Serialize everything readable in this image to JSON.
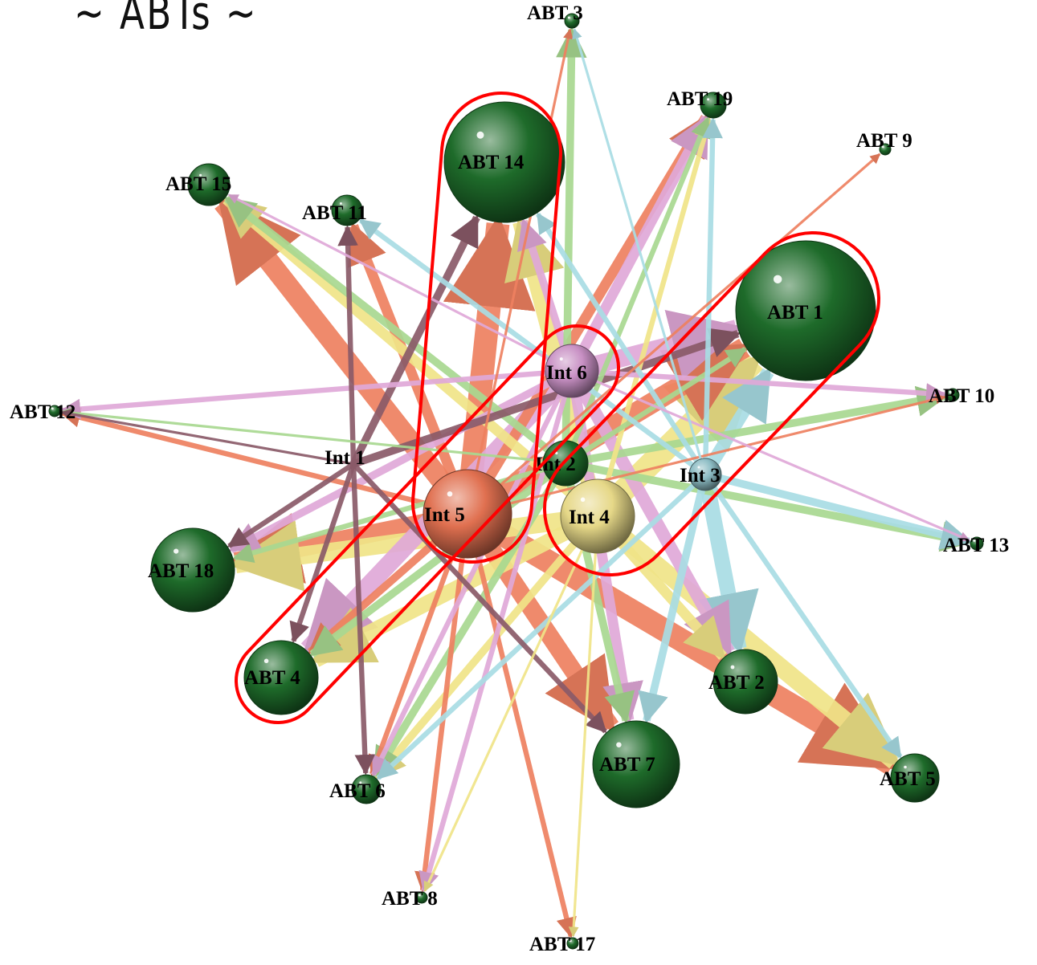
{
  "title": "~ ABTs ~",
  "colors": {
    "abt_node": "#1e6b2a",
    "highlight": "#ff0000",
    "int1": "#7e5560",
    "int2": "#1e6b2a",
    "int3": "#8cbcc4",
    "int4": "#e6d888",
    "int5": "#e07050",
    "int6": "#c890c4",
    "edge_orange": "#ee8060",
    "edge_green": "#a8d890",
    "edge_yellow": "#f0e488",
    "edge_pink": "#e0a8d8",
    "edge_cyan": "#a8dce4",
    "edge_brown": "#8a5a68"
  },
  "nodes": [
    {
      "id": "abt3",
      "label": "ABT 3",
      "kind": "abt"
    },
    {
      "id": "abt19",
      "label": "ABT 19",
      "kind": "abt"
    },
    {
      "id": "abt9",
      "label": "ABT 9",
      "kind": "abt"
    },
    {
      "id": "abt14",
      "label": "ABT 14",
      "kind": "abt"
    },
    {
      "id": "abt15",
      "label": "ABT 15",
      "kind": "abt"
    },
    {
      "id": "abt11",
      "label": "ABT 11",
      "kind": "abt"
    },
    {
      "id": "abt1",
      "label": "ABT 1",
      "kind": "abt"
    },
    {
      "id": "abt10",
      "label": "ABT 10",
      "kind": "abt"
    },
    {
      "id": "abt12",
      "label": "ABT 12",
      "kind": "abt"
    },
    {
      "id": "abt13",
      "label": "ABT 13",
      "kind": "abt"
    },
    {
      "id": "abt18",
      "label": "ABT 18",
      "kind": "abt"
    },
    {
      "id": "abt4",
      "label": "ABT 4",
      "kind": "abt"
    },
    {
      "id": "abt2",
      "label": "ABT 2",
      "kind": "abt"
    },
    {
      "id": "abt7",
      "label": "ABT 7",
      "kind": "abt"
    },
    {
      "id": "abt5",
      "label": "ABT 5",
      "kind": "abt"
    },
    {
      "id": "abt6",
      "label": "ABT 6",
      "kind": "abt"
    },
    {
      "id": "abt8",
      "label": "ABT 8",
      "kind": "abt"
    },
    {
      "id": "abt17",
      "label": "ABT 17",
      "kind": "abt"
    },
    {
      "id": "int1",
      "label": "Int 1",
      "kind": "int1"
    },
    {
      "id": "int2",
      "label": "Int 2",
      "kind": "int2"
    },
    {
      "id": "int3",
      "label": "Int 3",
      "kind": "int3"
    },
    {
      "id": "int4",
      "label": "Int 4",
      "kind": "int4"
    },
    {
      "id": "int5",
      "label": "Int 5",
      "kind": "int5"
    },
    {
      "id": "int6",
      "label": "Int 6",
      "kind": "int6"
    }
  ],
  "edges": [
    {
      "from": "int5",
      "to": "abt14",
      "color": "edge_orange",
      "weight": 9
    },
    {
      "from": "int5",
      "to": "abt15",
      "color": "edge_orange",
      "weight": 8
    },
    {
      "from": "int5",
      "to": "abt5",
      "color": "edge_orange",
      "weight": 9
    },
    {
      "from": "int5",
      "to": "abt1",
      "color": "edge_orange",
      "weight": 8
    },
    {
      "from": "int5",
      "to": "abt18",
      "color": "edge_orange",
      "weight": 7
    },
    {
      "from": "int5",
      "to": "abt7",
      "color": "edge_orange",
      "weight": 7
    },
    {
      "from": "int5",
      "to": "abt11",
      "color": "edge_orange",
      "weight": 4
    },
    {
      "from": "int5",
      "to": "abt19",
      "color": "edge_orange",
      "weight": 4
    },
    {
      "from": "int5",
      "to": "abt12",
      "color": "edge_orange",
      "weight": 2
    },
    {
      "from": "int5",
      "to": "abt8",
      "color": "edge_orange",
      "weight": 2
    },
    {
      "from": "int5",
      "to": "abt17",
      "color": "edge_orange",
      "weight": 2
    },
    {
      "from": "int5",
      "to": "abt6",
      "color": "edge_orange",
      "weight": 2
    },
    {
      "from": "int5",
      "to": "abt3",
      "color": "edge_orange",
      "weight": 1
    },
    {
      "from": "int5",
      "to": "abt4",
      "color": "edge_orange",
      "weight": 3
    },
    {
      "from": "int5",
      "to": "abt9",
      "color": "edge_orange",
      "weight": 1
    },
    {
      "from": "int5",
      "to": "abt10",
      "color": "edge_orange",
      "weight": 1
    },
    {
      "from": "int4",
      "to": "abt1",
      "color": "edge_yellow",
      "weight": 9
    },
    {
      "from": "int4",
      "to": "abt14",
      "color": "edge_yellow",
      "weight": 6
    },
    {
      "from": "int4",
      "to": "abt18",
      "color": "edge_yellow",
      "weight": 7
    },
    {
      "from": "int4",
      "to": "abt4",
      "color": "edge_yellow",
      "weight": 6
    },
    {
      "from": "int4",
      "to": "abt5",
      "color": "edge_yellow",
      "weight": 7
    },
    {
      "from": "int4",
      "to": "abt15",
      "color": "edge_yellow",
      "weight": 4
    },
    {
      "from": "int4",
      "to": "abt6",
      "color": "edge_yellow",
      "weight": 3
    },
    {
      "from": "int4",
      "to": "abt2",
      "color": "edge_yellow",
      "weight": 4
    },
    {
      "from": "int4",
      "to": "abt19",
      "color": "edge_yellow",
      "weight": 2
    },
    {
      "from": "int4",
      "to": "abt17",
      "color": "edge_yellow",
      "weight": 1
    },
    {
      "from": "int4",
      "to": "abt8",
      "color": "edge_yellow",
      "weight": 1
    },
    {
      "from": "int6",
      "to": "abt1",
      "color": "edge_pink",
      "weight": 7
    },
    {
      "from": "int6",
      "to": "abt4",
      "color": "edge_pink",
      "weight": 7
    },
    {
      "from": "int6",
      "to": "abt2",
      "color": "edge_pink",
      "weight": 5
    },
    {
      "from": "int6",
      "to": "abt18",
      "color": "edge_pink",
      "weight": 3
    },
    {
      "from": "int6",
      "to": "abt12",
      "color": "edge_pink",
      "weight": 2
    },
    {
      "from": "int6",
      "to": "abt10",
      "color": "edge_pink",
      "weight": 2
    },
    {
      "from": "int6",
      "to": "abt7",
      "color": "edge_pink",
      "weight": 4
    },
    {
      "from": "int6",
      "to": "abt14",
      "color": "edge_pink",
      "weight": 3
    },
    {
      "from": "int6",
      "to": "abt19",
      "color": "edge_pink",
      "weight": 4
    },
    {
      "from": "int6",
      "to": "abt6",
      "color": "edge_pink",
      "weight": 2
    },
    {
      "from": "int6",
      "to": "abt15",
      "color": "edge_pink",
      "weight": 1
    },
    {
      "from": "int6",
      "to": "abt13",
      "color": "edge_pink",
      "weight": 1
    },
    {
      "from": "int6",
      "to": "abt8",
      "color": "edge_pink",
      "weight": 2
    },
    {
      "from": "int2",
      "to": "abt15",
      "color": "edge_green",
      "weight": 3
    },
    {
      "from": "int2",
      "to": "abt3",
      "color": "edge_green",
      "weight": 3
    },
    {
      "from": "int2",
      "to": "abt10",
      "color": "edge_green",
      "weight": 3
    },
    {
      "from": "int2",
      "to": "abt13",
      "color": "edge_green",
      "weight": 3
    },
    {
      "from": "int2",
      "to": "abt12",
      "color": "edge_green",
      "weight": 1
    },
    {
      "from": "int2",
      "to": "abt6",
      "color": "edge_green",
      "weight": 3
    },
    {
      "from": "int2",
      "to": "abt7",
      "color": "edge_green",
      "weight": 3
    },
    {
      "from": "int2",
      "to": "abt19",
      "color": "edge_green",
      "weight": 2
    },
    {
      "from": "int2",
      "to": "abt18",
      "color": "edge_green",
      "weight": 2
    },
    {
      "from": "int2",
      "to": "abt4",
      "color": "edge_green",
      "weight": 3
    },
    {
      "from": "int2",
      "to": "abt1",
      "color": "edge_green",
      "weight": 2
    },
    {
      "from": "int3",
      "to": "abt1",
      "color": "edge_cyan",
      "weight": 5
    },
    {
      "from": "int3",
      "to": "abt2",
      "color": "edge_cyan",
      "weight": 6
    },
    {
      "from": "int3",
      "to": "abt7",
      "color": "edge_cyan",
      "weight": 3
    },
    {
      "from": "int3",
      "to": "abt13",
      "color": "edge_cyan",
      "weight": 3
    },
    {
      "from": "int3",
      "to": "abt5",
      "color": "edge_cyan",
      "weight": 2
    },
    {
      "from": "int3",
      "to": "abt11",
      "color": "edge_cyan",
      "weight": 2
    },
    {
      "from": "int3",
      "to": "abt19",
      "color": "edge_cyan",
      "weight": 2
    },
    {
      "from": "int3",
      "to": "abt14",
      "color": "edge_cyan",
      "weight": 2
    },
    {
      "from": "int3",
      "to": "abt3",
      "color": "edge_cyan",
      "weight": 1
    },
    {
      "from": "int3",
      "to": "abt6",
      "color": "edge_cyan",
      "weight": 2
    },
    {
      "from": "int1",
      "to": "abt11",
      "color": "edge_brown",
      "weight": 2
    },
    {
      "from": "int1",
      "to": "abt6",
      "color": "edge_brown",
      "weight": 2
    },
    {
      "from": "int1",
      "to": "abt14",
      "color": "edge_brown",
      "weight": 3
    },
    {
      "from": "int1",
      "to": "abt4",
      "color": "edge_brown",
      "weight": 2
    },
    {
      "from": "int1",
      "to": "abt18",
      "color": "edge_brown",
      "weight": 2
    },
    {
      "from": "int1",
      "to": "abt7",
      "color": "edge_brown",
      "weight": 2
    },
    {
      "from": "int1",
      "to": "abt1",
      "color": "edge_brown",
      "weight": 3
    },
    {
      "from": "int1",
      "to": "abt12",
      "color": "edge_brown",
      "weight": 1
    }
  ]
}
